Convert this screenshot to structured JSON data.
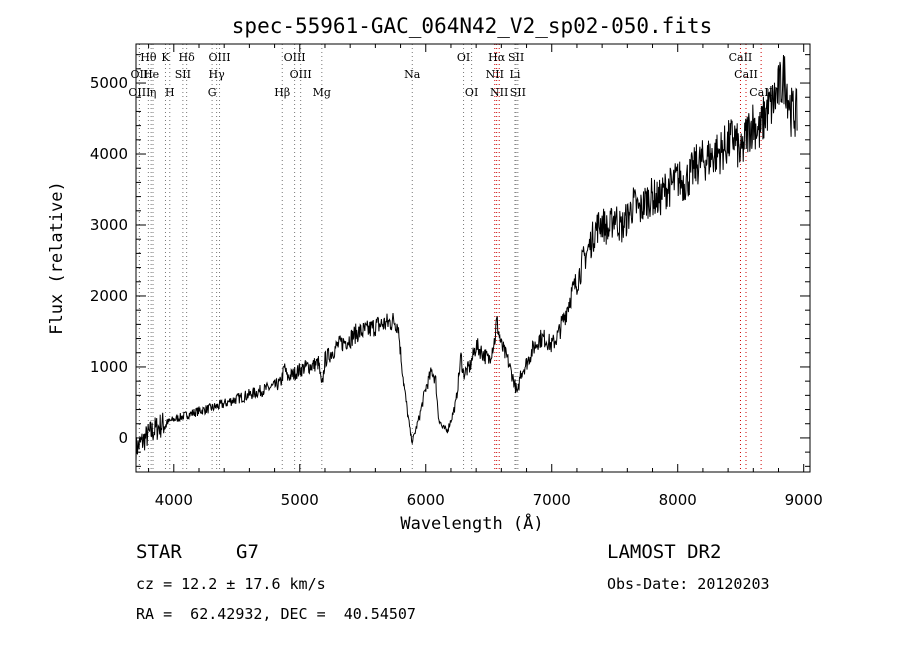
{
  "chart_data": {
    "type": "line",
    "title": "spec-55961-GAC_064N42_V2_sp02-050.fits",
    "xlabel": "Wavelength (Å)",
    "ylabel": "Flux (relative)",
    "xlim": [
      3700,
      9050
    ],
    "ylim": [
      -480,
      5550
    ],
    "xticks": [
      "4000",
      "5000",
      "6000",
      "7000",
      "8000",
      "9000"
    ],
    "yticks": [
      "0",
      "1000",
      "2000",
      "3000",
      "4000",
      "5000"
    ],
    "xtick_values": [
      4000,
      5000,
      6000,
      7000,
      8000,
      9000
    ],
    "ytick_values": [
      0,
      1000,
      2000,
      3000,
      4000,
      5000
    ],
    "grid": false,
    "series": [
      {
        "x": [
          3700,
          3750,
          3800,
          3850,
          3900,
          3950,
          4000,
          4050,
          4100,
          4150,
          4200,
          4250,
          4300,
          4350,
          4400,
          4450,
          4500,
          4550,
          4600,
          4650,
          4700,
          4750,
          4800,
          4850,
          4880,
          4900,
          4950,
          5000,
          5050,
          5100,
          5150,
          5175,
          5200,
          5250,
          5300,
          5350,
          5400,
          5450,
          5500,
          5550,
          5600,
          5650,
          5700,
          5750,
          5780,
          5800,
          5830,
          5860,
          5880,
          5893,
          5910,
          5950,
          6000,
          6050,
          6080,
          6100,
          6130,
          6170,
          6200,
          6240,
          6280,
          6300,
          6350,
          6400,
          6450,
          6500,
          6550,
          6563,
          6600,
          6650,
          6700,
          6730,
          6750,
          6800,
          6850,
          6900,
          6950,
          7000,
          7050,
          7100,
          7150,
          7200,
          7250,
          7300,
          7350,
          7400,
          7450,
          7500,
          7550,
          7600,
          7650,
          7700,
          7750,
          7800,
          7850,
          7900,
          7950,
          8000,
          8050,
          8100,
          8150,
          8200,
          8250,
          8300,
          8350,
          8400,
          8450,
          8500,
          8550,
          8600,
          8650,
          8700,
          8750,
          8800,
          8850,
          8900,
          8950
        ],
        "y": [
          -150,
          -50,
          50,
          120,
          180,
          220,
          260,
          290,
          320,
          350,
          380,
          400,
          420,
          450,
          480,
          520,
          550,
          580,
          610,
          640,
          670,
          700,
          730,
          780,
          1000,
          850,
          900,
          960,
          1000,
          1020,
          1060,
          700,
          1100,
          1200,
          1300,
          1350,
          1400,
          1480,
          1500,
          1520,
          1580,
          1600,
          1620,
          1650,
          1600,
          1200,
          700,
          300,
          50,
          -50,
          50,
          300,
          700,
          950,
          800,
          300,
          150,
          100,
          250,
          500,
          1150,
          900,
          1000,
          1300,
          1200,
          1100,
          1400,
          1650,
          1300,
          1100,
          800,
          600,
          900,
          1050,
          1250,
          1400,
          1400,
          1300,
          1450,
          1700,
          2000,
          2200,
          2500,
          2700,
          2950,
          3050,
          2900,
          3150,
          2950,
          3100,
          3300,
          3200,
          3350,
          3400,
          3350,
          3500,
          3550,
          3650,
          3600,
          3700,
          3850,
          3900,
          3950,
          4000,
          4050,
          4150,
          4250,
          3950,
          4300,
          4450,
          4300,
          4600,
          4700,
          4900,
          5100,
          4600,
          4550
        ]
      }
    ],
    "lines": [
      {
        "label": "Hθ",
        "x": 3798,
        "row": 0,
        "color": "#777777"
      },
      {
        "label": "K",
        "x": 3934,
        "row": 0,
        "color": "#777777"
      },
      {
        "label": "Hδ",
        "x": 4102,
        "row": 0,
        "color": "#777777"
      },
      {
        "label": "OIII",
        "x": 4363,
        "row": 0,
        "color": "#777777"
      },
      {
        "label": "OIII",
        "x": 4959,
        "row": 0,
        "color": "#777777"
      },
      {
        "label": "OI",
        "x": 6300,
        "row": 0,
        "color": "#777777"
      },
      {
        "label": "Hα",
        "x": 6563,
        "row": 0,
        "color": "#cc0000"
      },
      {
        "label": "SII",
        "x": 6717,
        "row": 0,
        "color": "#777777"
      },
      {
        "label": "CaII",
        "x": 8498,
        "row": 0,
        "color": "#cc0000"
      },
      {
        "label": "OII",
        "x": 3727,
        "row": 1,
        "color": "#777777"
      },
      {
        "label": "He",
        "x": 3820,
        "row": 1,
        "color": "#777777"
      },
      {
        "label": "SII",
        "x": 4072,
        "row": 1,
        "color": "#777777"
      },
      {
        "label": "Hγ",
        "x": 4340,
        "row": 1,
        "color": "#777777"
      },
      {
        "label": "OIII",
        "x": 5007,
        "row": 1,
        "color": "#777777"
      },
      {
        "label": "Na",
        "x": 5893,
        "row": 1,
        "color": "#777777"
      },
      {
        "label": "NII",
        "x": 6548,
        "row": 1,
        "color": "#cc0000"
      },
      {
        "label": "Li",
        "x": 6708,
        "row": 1,
        "color": "#777777"
      },
      {
        "label": "CaII",
        "x": 8542,
        "row": 1,
        "color": "#cc0000"
      },
      {
        "label": "OIII",
        "x": 3727,
        "row": 2,
        "color": "#777777"
      },
      {
        "label": "η",
        "x": 3835,
        "row": 2,
        "color": "#777777"
      },
      {
        "label": "H",
        "x": 3968,
        "row": 2,
        "color": "#777777"
      },
      {
        "label": "G",
        "x": 4304,
        "row": 2,
        "color": "#777777"
      },
      {
        "label": "Hβ",
        "x": 4861,
        "row": 2,
        "color": "#777777"
      },
      {
        "label": "Mg",
        "x": 5175,
        "row": 2,
        "color": "#777777"
      },
      {
        "label": "OI",
        "x": 6364,
        "row": 2,
        "color": "#777777"
      },
      {
        "label": "NII",
        "x": 6583,
        "row": 2,
        "color": "#cc0000"
      },
      {
        "label": "SII",
        "x": 6731,
        "row": 2,
        "color": "#777777"
      },
      {
        "label": "CaII",
        "x": 8662,
        "row": 2,
        "color": "#cc0000"
      }
    ]
  },
  "info": {
    "class_label": "STAR",
    "subclass": "G7",
    "survey": "LAMOST DR2",
    "cz": "cz = 12.2 ± 17.6 km/s",
    "obs_date": "Obs-Date: 20120203",
    "coords": "RA =  62.42932, DEC =  40.54507"
  }
}
